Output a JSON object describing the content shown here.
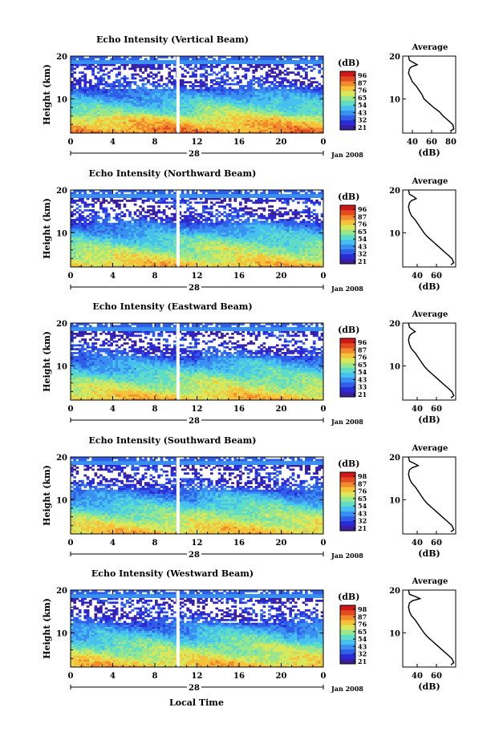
{
  "figure": {
    "xlabel": "Local Time",
    "date_label": "Jan 2008",
    "day_label": "28",
    "colorbar_unit": "(dB)",
    "avg_title": "Average",
    "avg_xlabel": "(dB)",
    "ylabel": "Height (km)"
  },
  "colors": {
    "scale": [
      "#3c1f9e",
      "#2b2bd6",
      "#2f5fe8",
      "#3a90f0",
      "#46c0ee",
      "#5fdcc8",
      "#9ae68a",
      "#d9e85a",
      "#f5c23a",
      "#f08a2c",
      "#e24a22",
      "#d01818"
    ],
    "gap": "#ffffff"
  },
  "chart_data": [
    {
      "type": "heatmap",
      "title": "Echo Intensity (Vertical Beam)",
      "x_ticks": [
        "0",
        "4",
        "8",
        "12",
        "16",
        "20",
        "0"
      ],
      "xlim": [
        0,
        24
      ],
      "y_ticks": [
        "20",
        "10"
      ],
      "ylim": [
        2,
        20
      ],
      "colorbar_ticks": [
        "96",
        "87",
        "76",
        "65",
        "54",
        "43",
        "32",
        "21"
      ],
      "data_gap_hour": 10.2,
      "average_profile": {
        "x_ticks": [
          "40",
          "60",
          "80"
        ],
        "xlim": [
          30,
          85
        ],
        "y_ticks": [
          "20",
          "10"
        ],
        "ylim": [
          2,
          20
        ],
        "height_km": [
          20,
          19,
          18.5,
          18,
          17.5,
          17,
          16,
          15,
          14,
          13,
          12,
          11,
          10,
          9,
          8,
          7,
          6,
          5,
          4,
          3,
          2.5
        ],
        "db": [
          36,
          37,
          41,
          45,
          39,
          37,
          36,
          38,
          40,
          44,
          47,
          50,
          52,
          57,
          62,
          68,
          72,
          77,
          82,
          83,
          80
        ]
      }
    },
    {
      "type": "heatmap",
      "title": "Echo Intensity (Northward Beam)",
      "x_ticks": [
        "0",
        "4",
        "8",
        "12",
        "16",
        "20",
        "0"
      ],
      "xlim": [
        0,
        24
      ],
      "y_ticks": [
        "20",
        "10"
      ],
      "ylim": [
        2,
        20
      ],
      "colorbar_ticks": [
        "96",
        "87",
        "76",
        "65",
        "54",
        "43",
        "32",
        "21"
      ],
      "data_gap_hour": 10.2,
      "average_profile": {
        "x_ticks": [
          "40",
          "60"
        ],
        "xlim": [
          25,
          80
        ],
        "y_ticks": [
          "20",
          "10"
        ],
        "ylim": [
          2,
          20
        ],
        "height_km": [
          20,
          19,
          18.5,
          18,
          17.5,
          17,
          16,
          15,
          14,
          13,
          12,
          11,
          10,
          9,
          8,
          7,
          6,
          5,
          4,
          3,
          2.5
        ],
        "db": [
          31,
          32,
          36,
          39,
          34,
          32,
          31,
          32,
          34,
          38,
          41,
          44,
          47,
          51,
          56,
          61,
          66,
          71,
          76,
          78,
          75
        ]
      }
    },
    {
      "type": "heatmap",
      "title": "Echo Intensity (Eastward Beam)",
      "x_ticks": [
        "0",
        "4",
        "8",
        "12",
        "16",
        "20",
        "0"
      ],
      "xlim": [
        0,
        24
      ],
      "y_ticks": [
        "20",
        "10"
      ],
      "ylim": [
        2,
        20
      ],
      "colorbar_ticks": [
        "96",
        "87",
        "76",
        "65",
        "54",
        "43",
        "33",
        "21"
      ],
      "data_gap_hour": 10.2,
      "average_profile": {
        "x_ticks": [
          "40",
          "60"
        ],
        "xlim": [
          25,
          80
        ],
        "y_ticks": [
          "20",
          "10"
        ],
        "ylim": [
          2,
          20
        ],
        "height_km": [
          20,
          19,
          18.5,
          18,
          17.5,
          17,
          16,
          15,
          14,
          13,
          12,
          11,
          10,
          9,
          8,
          7,
          6,
          5,
          4,
          3,
          2.5
        ],
        "db": [
          31,
          32,
          35,
          38,
          34,
          32,
          31,
          32,
          34,
          38,
          41,
          44,
          47,
          51,
          56,
          61,
          66,
          71,
          76,
          78,
          75
        ]
      }
    },
    {
      "type": "heatmap",
      "title": "Echo Intensity (Southward Beam)",
      "x_ticks": [
        "0",
        "4",
        "8",
        "12",
        "16",
        "20",
        "0"
      ],
      "xlim": [
        0,
        24
      ],
      "y_ticks": [
        "20",
        "10"
      ],
      "ylim": [
        2,
        20
      ],
      "colorbar_ticks": [
        "98",
        "87",
        "76",
        "65",
        "54",
        "43",
        "32",
        "21"
      ],
      "data_gap_hour": 10.2,
      "average_profile": {
        "x_ticks": [
          "40",
          "60"
        ],
        "xlim": [
          25,
          80
        ],
        "y_ticks": [
          "20",
          "10"
        ],
        "ylim": [
          2,
          20
        ],
        "height_km": [
          20,
          19,
          18.5,
          18,
          17.5,
          17,
          16,
          15,
          14,
          13,
          12,
          11,
          10,
          9,
          8,
          7,
          6,
          5,
          4,
          3,
          2.5
        ],
        "db": [
          31,
          32,
          37,
          41,
          35,
          32,
          31,
          32,
          34,
          38,
          41,
          44,
          47,
          51,
          56,
          61,
          66,
          71,
          76,
          78,
          75
        ]
      }
    },
    {
      "type": "heatmap",
      "title": "Echo Intensity (Westward Beam)",
      "x_ticks": [
        "0",
        "4",
        "8",
        "12",
        "16",
        "20",
        "0"
      ],
      "xlim": [
        0,
        24
      ],
      "y_ticks": [
        "20",
        "10"
      ],
      "ylim": [
        2,
        20
      ],
      "colorbar_ticks": [
        "98",
        "87",
        "76",
        "65",
        "54",
        "43",
        "32",
        "21"
      ],
      "data_gap_hour": 10.2,
      "average_profile": {
        "x_ticks": [
          "40",
          "60"
        ],
        "xlim": [
          25,
          80
        ],
        "y_ticks": [
          "20",
          "10"
        ],
        "ylim": [
          2,
          20
        ],
        "height_km": [
          20,
          19,
          18.5,
          18,
          17.5,
          17,
          16,
          15,
          14,
          13,
          12,
          11,
          10,
          9,
          8,
          7,
          6,
          5,
          4,
          3,
          2.5
        ],
        "db": [
          31,
          32,
          38,
          43,
          35,
          32,
          31,
          32,
          34,
          38,
          41,
          44,
          47,
          51,
          56,
          61,
          66,
          71,
          76,
          78,
          75
        ]
      }
    }
  ]
}
